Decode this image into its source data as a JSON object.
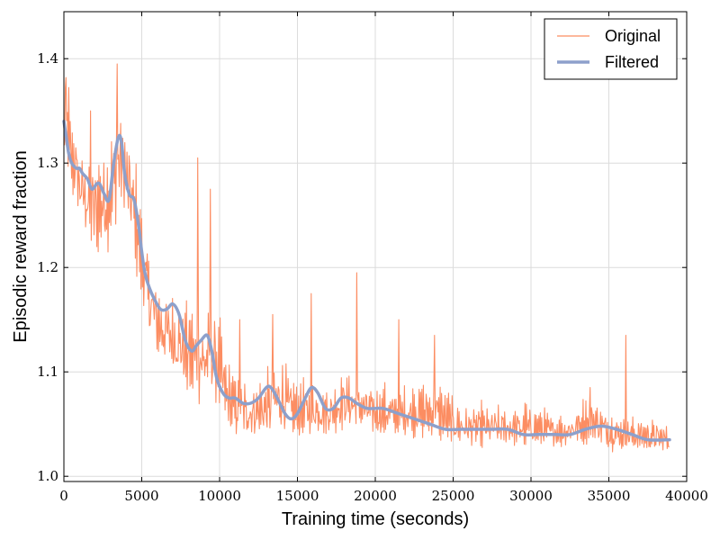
{
  "chart_data": {
    "type": "line",
    "title": "",
    "xlabel": "Training time (seconds)",
    "ylabel": "Episodic reward fraction",
    "xlim": [
      0,
      40000
    ],
    "ylim": [
      0.995,
      1.445
    ],
    "xticks": [
      0,
      5000,
      10000,
      15000,
      20000,
      25000,
      30000,
      35000,
      40000
    ],
    "xtick_labels": [
      "0",
      "5000",
      "10000",
      "15000",
      "20000",
      "25000",
      "30000",
      "35000",
      "40000"
    ],
    "yticks": [
      1.0,
      1.1,
      1.2,
      1.3,
      1.4
    ],
    "ytick_labels": [
      "1.0",
      "1.1",
      "1.2",
      "1.3",
      "1.4"
    ],
    "grid": true,
    "legend_position": "top-right",
    "colors": {
      "original": "#fc8d62",
      "filtered": "#8da0cb"
    },
    "original_band": {
      "x": [
        0,
        100,
        200,
        300,
        500,
        700,
        1000,
        1500,
        2000,
        2500,
        3000,
        3500,
        3700,
        4000,
        4500,
        5000,
        5500,
        6000,
        7000,
        8000,
        8500,
        9000,
        9500,
        10000,
        10500,
        11000,
        12000,
        13000,
        14000,
        14500,
        15000,
        16000,
        17000,
        18000,
        19000,
        20000,
        22000,
        24000,
        25000,
        26000,
        28000,
        30000,
        32000,
        34000,
        35000,
        36000,
        37000,
        38000,
        38900
      ],
      "low": [
        1.27,
        1.3,
        1.28,
        1.27,
        1.25,
        1.26,
        1.24,
        1.22,
        1.19,
        1.21,
        1.2,
        1.24,
        1.25,
        1.23,
        1.2,
        1.16,
        1.12,
        1.1,
        1.09,
        1.07,
        1.06,
        1.06,
        1.07,
        1.05,
        1.04,
        1.03,
        1.03,
        1.03,
        1.03,
        1.03,
        1.03,
        1.035,
        1.035,
        1.04,
        1.04,
        1.035,
        1.035,
        1.03,
        1.025,
        1.025,
        1.025,
        1.025,
        1.025,
        1.03,
        1.02,
        1.02,
        1.02,
        1.02,
        1.02
      ],
      "high": [
        1.42,
        1.44,
        1.43,
        1.41,
        1.38,
        1.36,
        1.34,
        1.33,
        1.36,
        1.34,
        1.38,
        1.39,
        1.39,
        1.37,
        1.34,
        1.28,
        1.25,
        1.22,
        1.2,
        1.19,
        1.2,
        1.19,
        1.19,
        1.18,
        1.13,
        1.12,
        1.11,
        1.12,
        1.15,
        1.12,
        1.11,
        1.11,
        1.1,
        1.12,
        1.11,
        1.1,
        1.1,
        1.11,
        1.09,
        1.08,
        1.08,
        1.08,
        1.07,
        1.09,
        1.08,
        1.07,
        1.07,
        1.065,
        1.06
      ]
    },
    "original_spikes": [
      {
        "x": 1700,
        "y": 1.35
      },
      {
        "x": 3400,
        "y": 1.395
      },
      {
        "x": 8600,
        "y": 1.305
      },
      {
        "x": 9400,
        "y": 1.275
      },
      {
        "x": 11300,
        "y": 1.15
      },
      {
        "x": 13400,
        "y": 1.155
      },
      {
        "x": 15900,
        "y": 1.175
      },
      {
        "x": 18800,
        "y": 1.195
      },
      {
        "x": 21500,
        "y": 1.15
      },
      {
        "x": 23800,
        "y": 1.135
      },
      {
        "x": 36100,
        "y": 1.135
      },
      {
        "x": 33800,
        "y": 1.085
      }
    ],
    "series": [
      {
        "name": "Filtered",
        "x": [
          0,
          150,
          300,
          500,
          800,
          1000,
          1200,
          1500,
          1800,
          2100,
          2300,
          2600,
          2900,
          3200,
          3500,
          3700,
          3900,
          4200,
          4500,
          4800,
          5000,
          5200,
          5500,
          5800,
          6200,
          6600,
          7000,
          7400,
          7800,
          8200,
          8500,
          8800,
          9200,
          9500,
          9800,
          10200,
          10600,
          11000,
          11500,
          12000,
          12500,
          13000,
          13300,
          13700,
          14200,
          14600,
          15000,
          15500,
          15900,
          16300,
          16800,
          17300,
          17800,
          18300,
          18800,
          19500,
          20500,
          21500,
          22500,
          23500,
          24500,
          25500,
          26500,
          27500,
          28500,
          29500,
          30500,
          31500,
          32500,
          33500,
          34500,
          35500,
          36500,
          37500,
          38900
        ],
        "y": [
          1.34,
          1.325,
          1.31,
          1.3,
          1.295,
          1.295,
          1.29,
          1.285,
          1.275,
          1.28,
          1.28,
          1.27,
          1.265,
          1.3,
          1.325,
          1.32,
          1.29,
          1.27,
          1.265,
          1.24,
          1.215,
          1.195,
          1.18,
          1.17,
          1.16,
          1.16,
          1.165,
          1.155,
          1.13,
          1.12,
          1.125,
          1.13,
          1.135,
          1.12,
          1.095,
          1.08,
          1.075,
          1.075,
          1.07,
          1.07,
          1.075,
          1.085,
          1.085,
          1.075,
          1.06,
          1.055,
          1.06,
          1.075,
          1.085,
          1.08,
          1.065,
          1.065,
          1.075,
          1.075,
          1.07,
          1.065,
          1.065,
          1.06,
          1.055,
          1.05,
          1.045,
          1.045,
          1.045,
          1.045,
          1.045,
          1.04,
          1.04,
          1.04,
          1.04,
          1.045,
          1.048,
          1.045,
          1.04,
          1.035,
          1.035
        ]
      }
    ],
    "legend": [
      {
        "name": "Original",
        "color": "#fc8d62",
        "width": 1.2
      },
      {
        "name": "Filtered",
        "color": "#8da0cb",
        "width": 3.5
      }
    ]
  }
}
